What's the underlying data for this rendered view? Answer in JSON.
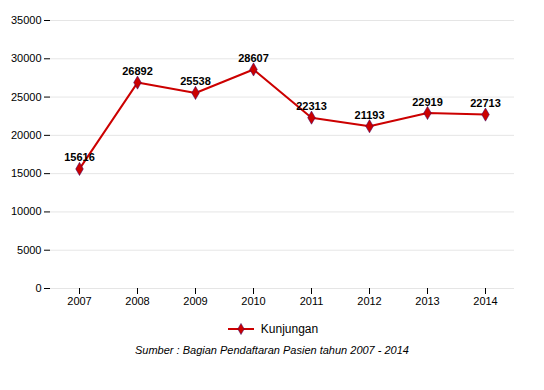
{
  "chart_data": {
    "type": "line",
    "caption": "Sumber : Bagian Pendaftaran Pasien tahun 2007 - 2014",
    "categories": [
      "2007",
      "2008",
      "2009",
      "2010",
      "2011",
      "2012",
      "2013",
      "2014"
    ],
    "series": [
      {
        "name": "Kunjungan",
        "color": "#cc0000",
        "marker": "diamond",
        "values": [
          15616,
          26892,
          25538,
          28607,
          22313,
          21193,
          22919,
          22713
        ]
      }
    ],
    "ylim": [
      0,
      35000
    ],
    "yticks": [
      0,
      5000,
      10000,
      15000,
      20000,
      25000,
      30000,
      35000
    ],
    "grid": true,
    "legend": "bottom",
    "data_labels": true
  }
}
